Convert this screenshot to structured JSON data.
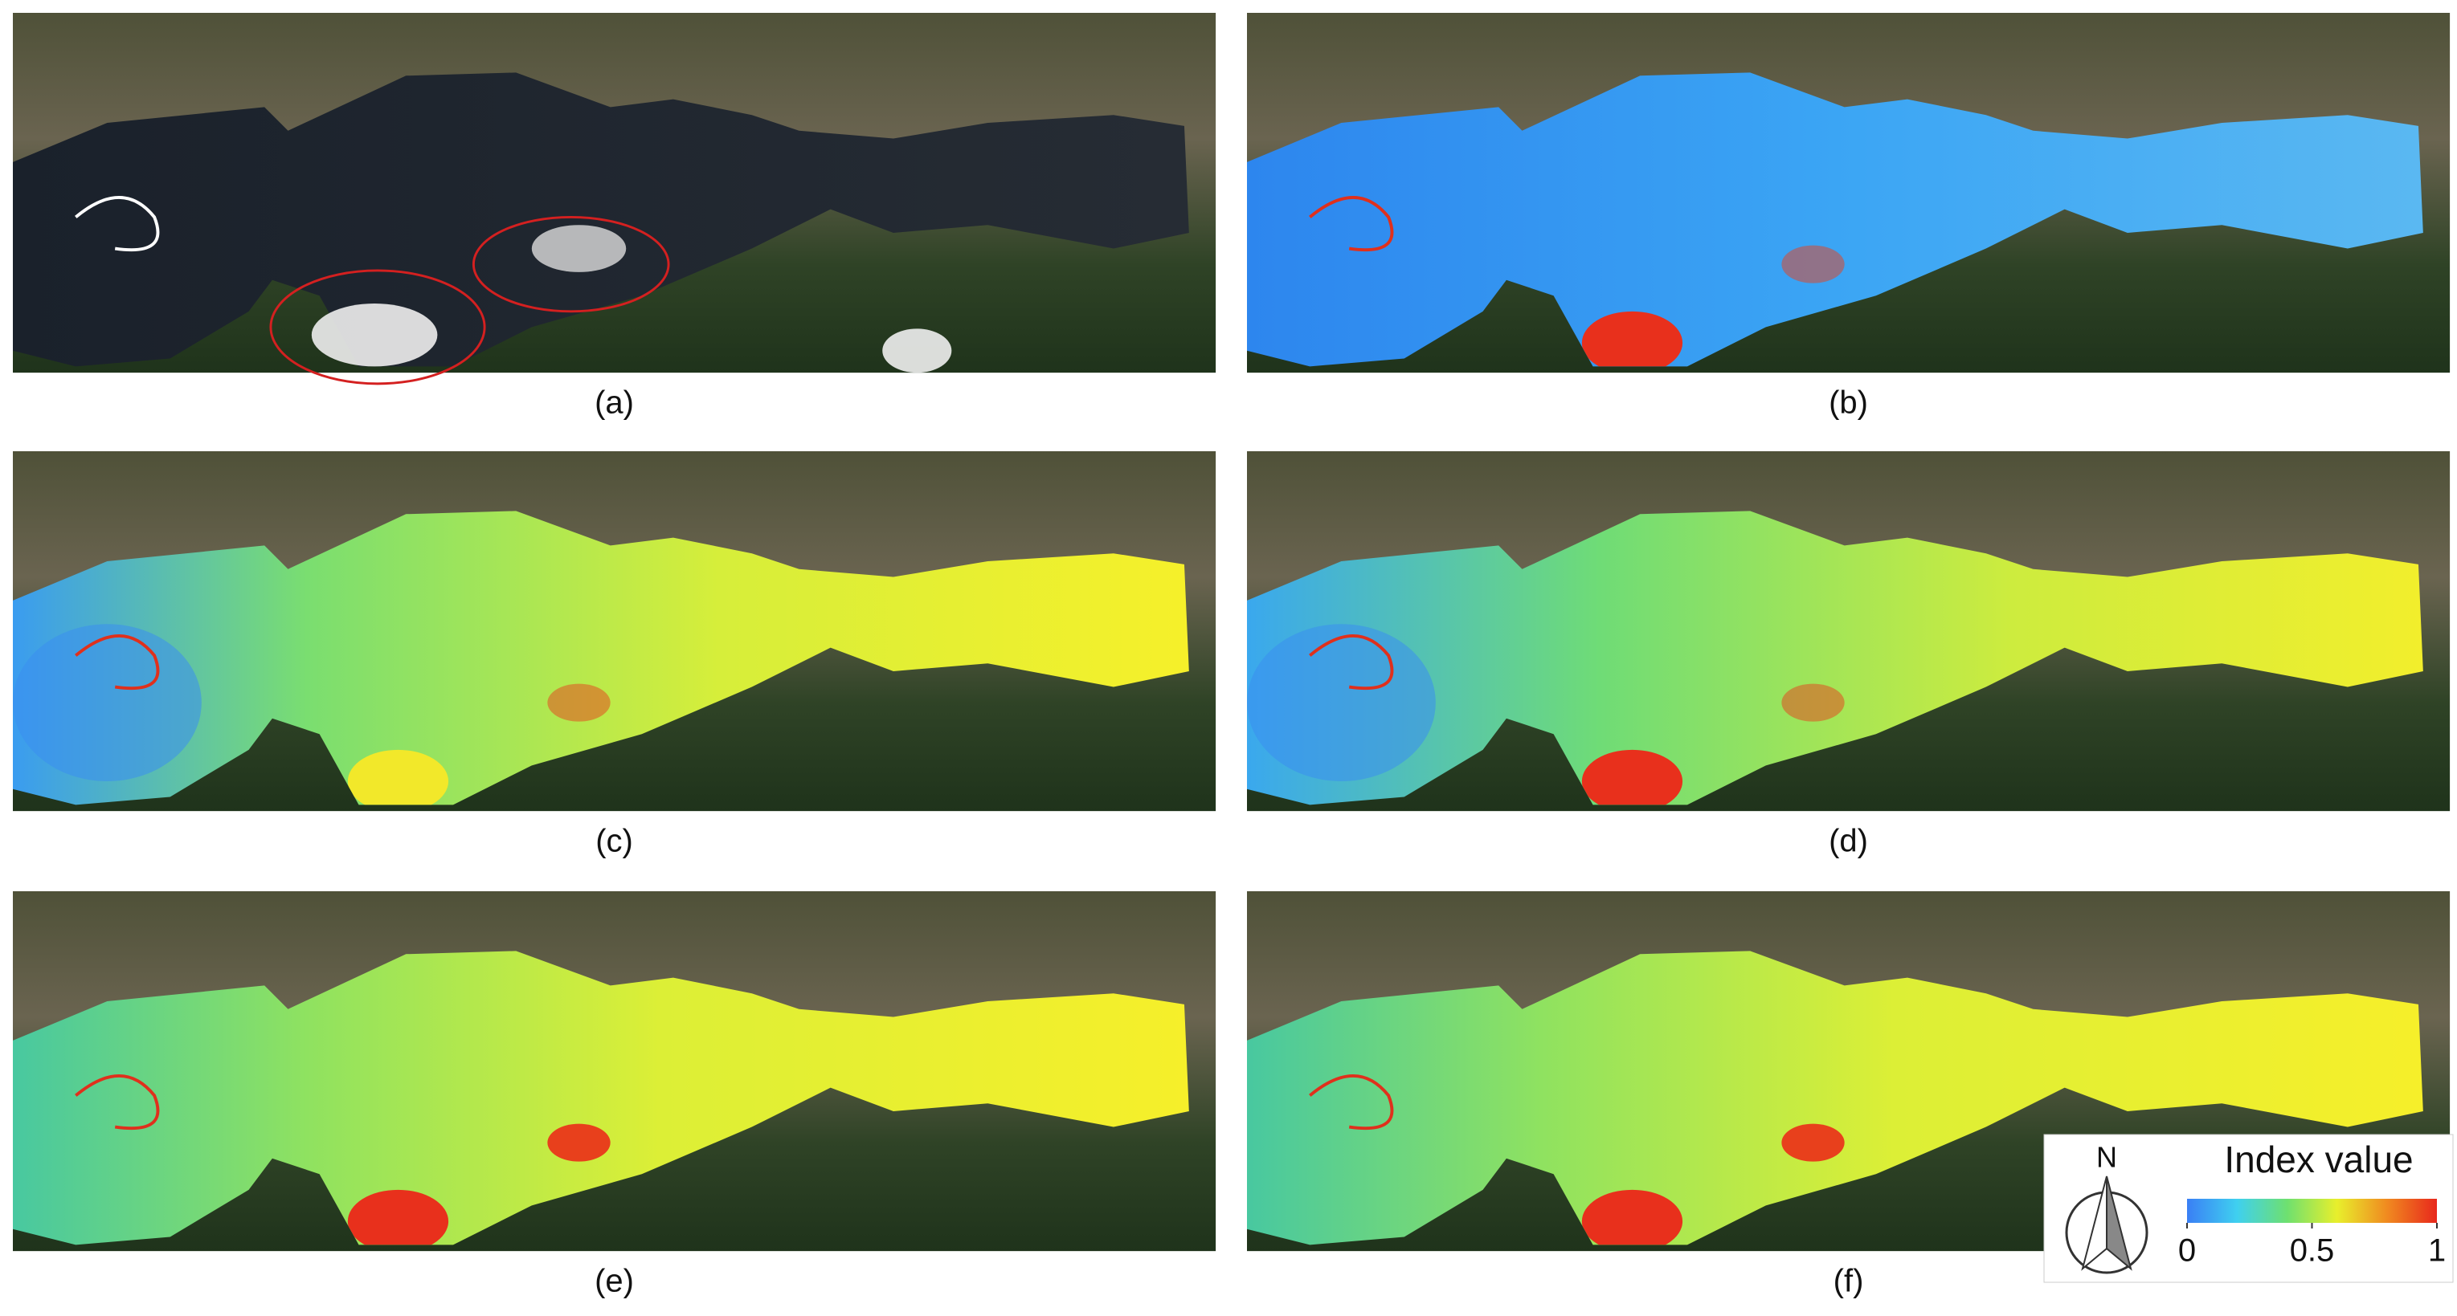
{
  "panels": [
    {
      "label": "(a)"
    },
    {
      "label": "(b)"
    },
    {
      "label": "(c)"
    },
    {
      "label": "(d)"
    },
    {
      "label": "(e)"
    },
    {
      "label": "(f)"
    }
  ],
  "legend": {
    "north": "N",
    "title": "Index value",
    "colorbar": {
      "lim": [
        0,
        1
      ],
      "ticks": [
        0,
        0.5,
        1
      ],
      "colormap": [
        "#3a7ff5",
        "#3fd0f0",
        "#6ee070",
        "#e8ef2c",
        "#f08a20",
        "#e8281c"
      ]
    }
  }
}
